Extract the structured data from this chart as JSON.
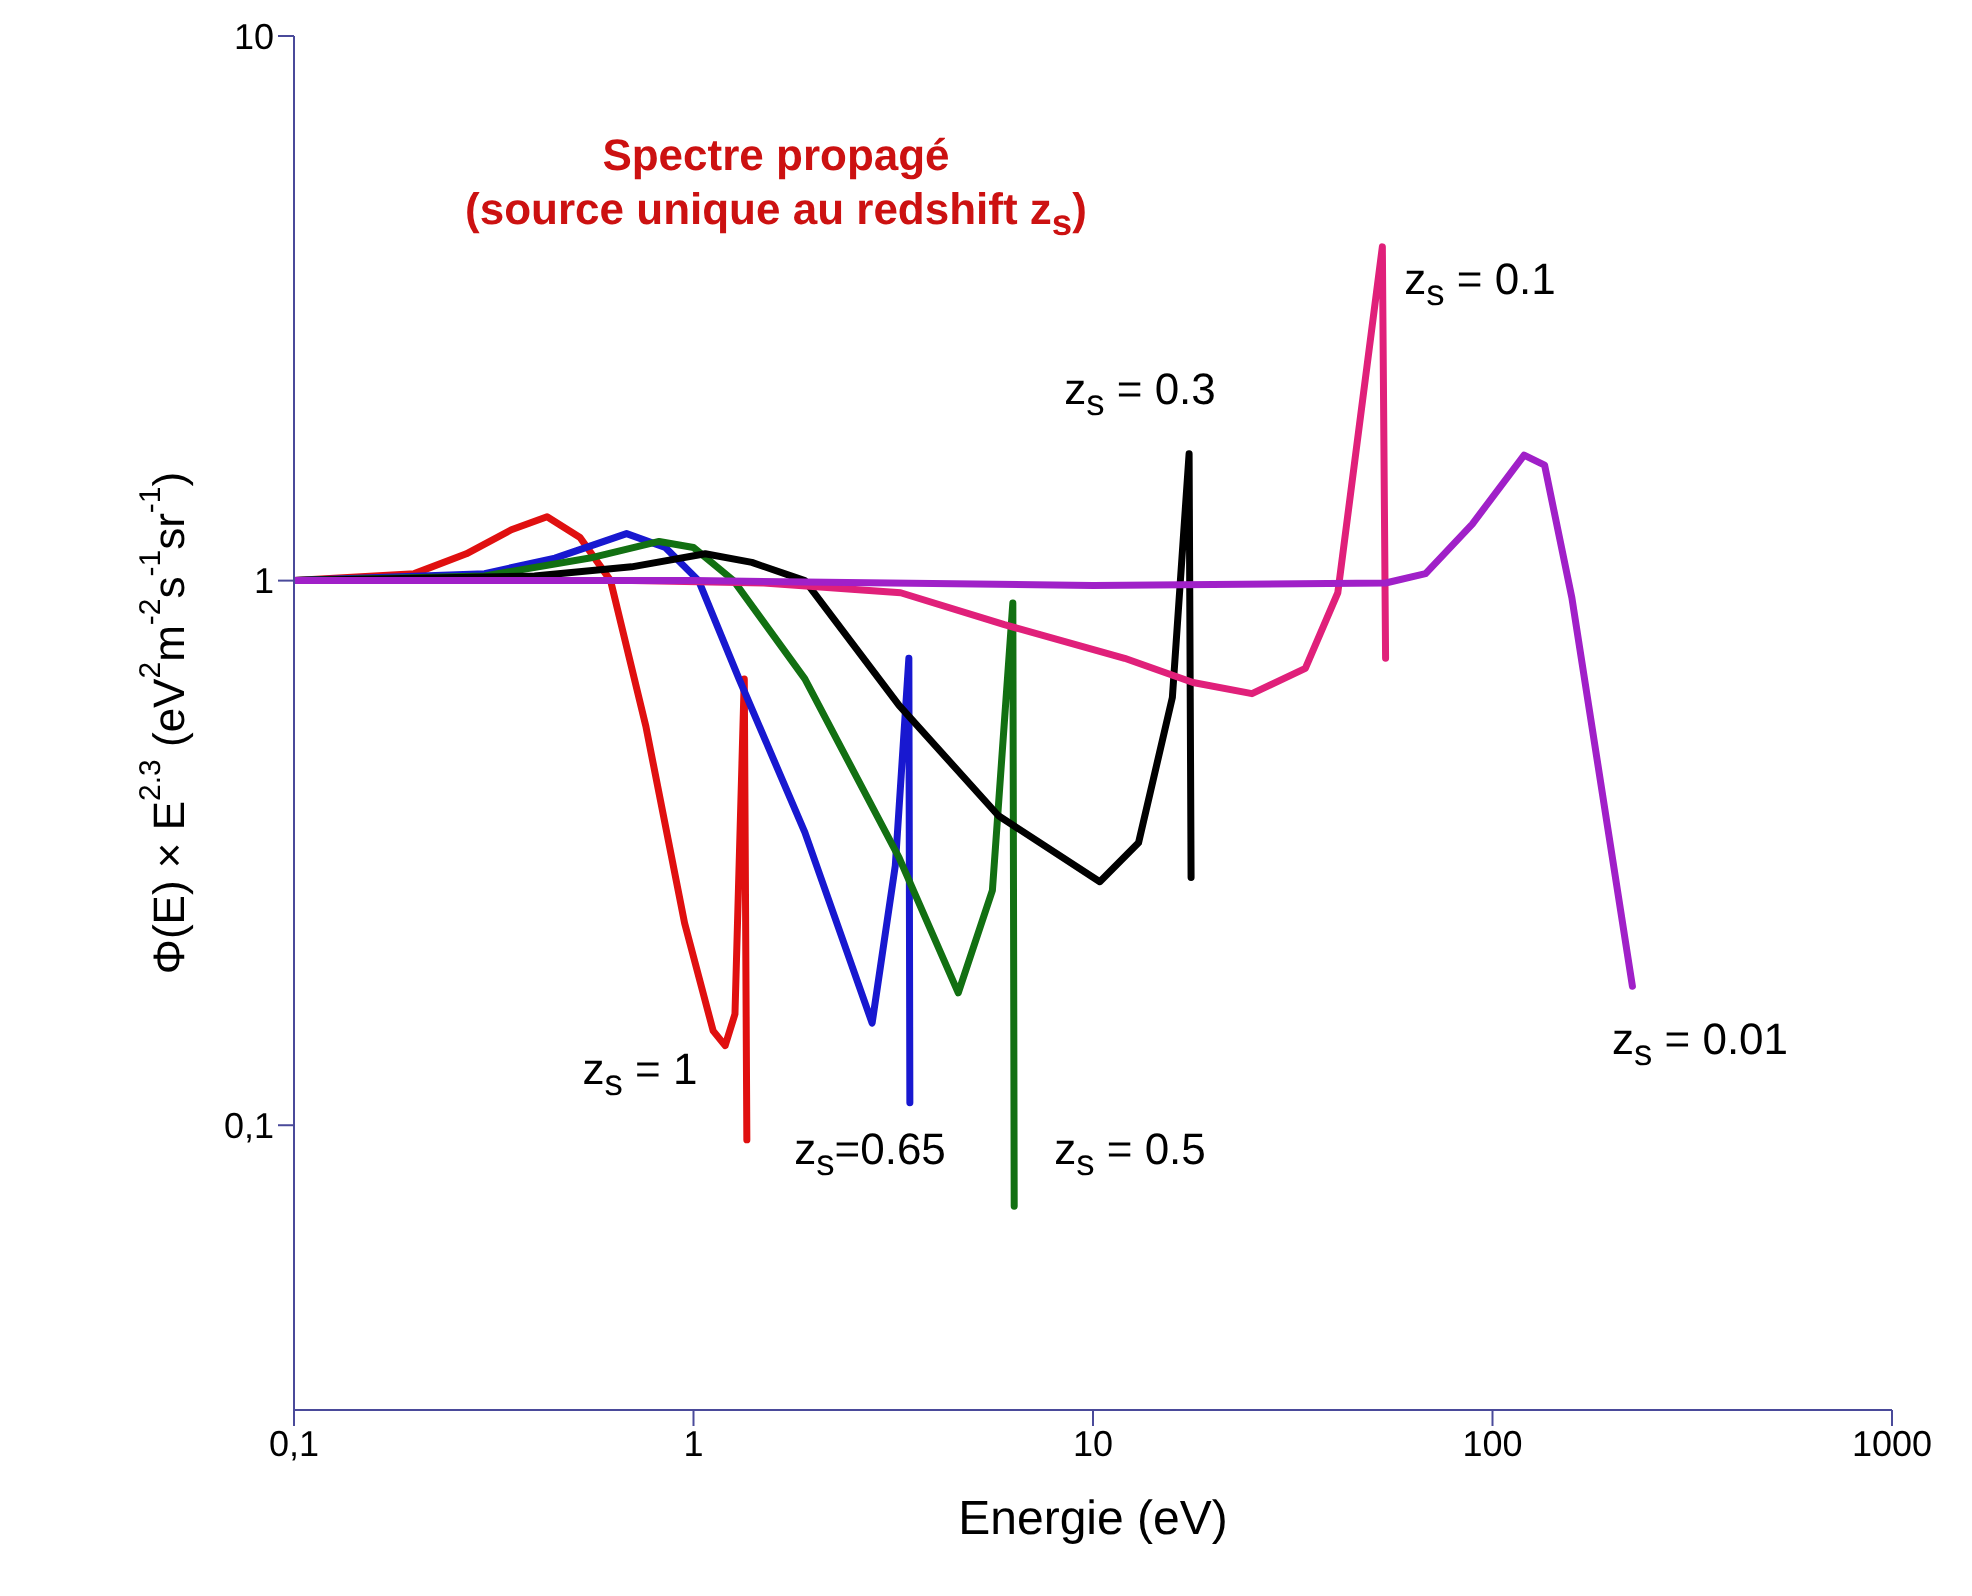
{
  "chart_data": {
    "type": "line",
    "title": "Spectre  propagé",
    "subtitle": "(source unique au redshift z$_{s}$)",
    "xlabel": "Energie (eV)",
    "ylabel": "Φ(E) × E$^{2.3}$ (eV$^{2}$m$^{-2}$s$^{-1}$sr$^{-1}$)",
    "log": "xy",
    "xlim": [
      0.1,
      1000
    ],
    "xticks": [
      {
        "value": 0.1,
        "label": "0,1"
      },
      1,
      10,
      100,
      1000
    ],
    "ylim": [
      0.03,
      10
    ],
    "yticks": [
      {
        "value": 0.1,
        "label": "0,1"
      },
      1,
      10
    ],
    "grid": false,
    "marker": "none",
    "line_style": "solid",
    "series": [
      {
        "color": "#e01010",
        "x": [
          0.1,
          0.2,
          0.27,
          0.35,
          0.43,
          0.52,
          0.62,
          0.76,
          0.95,
          1.12,
          1.2,
          1.27,
          1.34,
          1.36
        ],
        "values": [
          1,
          1.03,
          1.12,
          1.24,
          1.31,
          1.2,
          1.0,
          0.54,
          0.235,
          0.149,
          0.14,
          0.16,
          0.66,
          0.094
        ]
      },
      {
        "color": "#1818d0",
        "x": [
          0.1,
          0.3,
          0.45,
          0.68,
          0.85,
          1.03,
          1.3,
          1.9,
          2.8,
          3.2,
          3.46,
          3.48
        ],
        "values": [
          1,
          1.03,
          1.1,
          1.22,
          1.15,
          1.0,
          0.66,
          0.345,
          0.154,
          0.3,
          0.72,
          0.11
        ]
      },
      {
        "color": "#127012",
        "x": [
          0.1,
          0.3,
          0.55,
          0.82,
          1.0,
          1.26,
          1.9,
          3.27,
          4.6,
          5.6,
          6.3,
          6.35
        ],
        "values": [
          1,
          1.02,
          1.1,
          1.18,
          1.15,
          1.0,
          0.66,
          0.31,
          0.175,
          0.27,
          0.91,
          0.071
        ]
      },
      {
        "color": "#000000",
        "x": [
          0.1,
          0.4,
          0.7,
          1.07,
          1.4,
          1.9,
          3.27,
          5.8,
          10.4,
          13,
          15.8,
          17.4,
          17.6
        ],
        "values": [
          1,
          1.02,
          1.06,
          1.12,
          1.08,
          1.0,
          0.59,
          0.37,
          0.28,
          0.33,
          0.61,
          1.71,
          0.285
        ]
      },
      {
        "color": "#e0207a",
        "x": [
          0.1,
          0.7,
          1.5,
          3.3,
          6.0,
          12,
          17.8,
          25,
          34,
          41,
          53,
          54
        ],
        "values": [
          1,
          1.0,
          0.99,
          0.95,
          0.83,
          0.72,
          0.65,
          0.62,
          0.69,
          0.95,
          4.1,
          0.72
        ]
      },
      {
        "color": "#a020c8",
        "x": [
          0.1,
          1,
          10,
          54,
          68,
          89,
          120,
          135,
          158,
          224
        ],
        "values": [
          1,
          1.0,
          0.98,
          0.99,
          1.03,
          1.27,
          1.7,
          1.63,
          0.93,
          0.18
        ]
      }
    ],
    "annotations": [
      "z$_{s}$ = 1",
      "z$_{s}$=0.65",
      "z$_{s}$ = 0.5",
      "z$_{s}$ = 0.3",
      "z$_{s}$ = 0.1",
      "z$_{s}$ = 0.01"
    ]
  }
}
